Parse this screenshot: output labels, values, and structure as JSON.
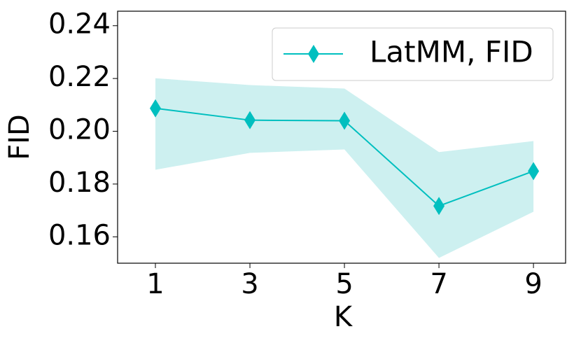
{
  "chart_data": {
    "type": "line",
    "xlabel": "K",
    "ylabel": "FID",
    "x": [
      1,
      3,
      5,
      7,
      9
    ],
    "series": [
      {
        "name": "LatMM, FID",
        "color": "#00bfbf",
        "band_color": "#cdf0f0",
        "values": [
          0.2087,
          0.2042,
          0.204,
          0.1717,
          0.1849
        ],
        "upper": [
          0.2201,
          0.2175,
          0.2162,
          0.1921,
          0.1963
        ],
        "lower": [
          0.1854,
          0.1918,
          0.1931,
          0.152,
          0.1695
        ]
      }
    ],
    "xlim": [
      0.2,
      9.68
    ],
    "ylim": [
      0.15,
      0.2455
    ],
    "xticks": [
      1,
      3,
      5,
      7,
      9
    ],
    "yticks": [
      {
        "value": 0.16,
        "label": "0.16"
      },
      {
        "value": 0.18,
        "label": "0.18"
      },
      {
        "value": 0.2,
        "label": "0.20"
      },
      {
        "value": 0.22,
        "label": "0.22"
      },
      {
        "value": 0.24,
        "label": "0.24"
      }
    ],
    "legend": "upper right"
  }
}
